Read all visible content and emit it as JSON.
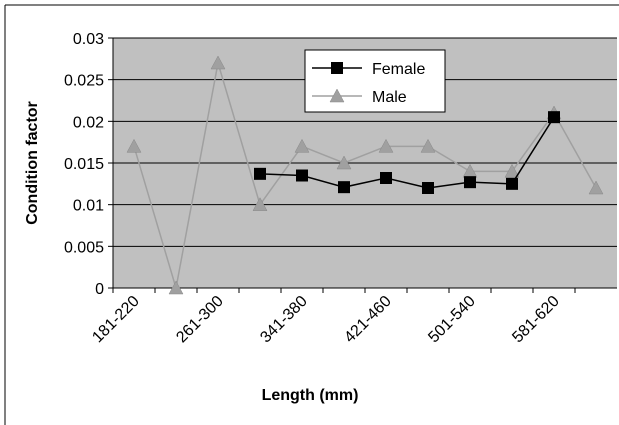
{
  "chart_data": {
    "type": "line",
    "x_label": "Length (mm)",
    "y_label": "Condition factor",
    "categories": [
      "181-220",
      null,
      "261-300",
      null,
      "341-380",
      null,
      "421-460",
      null,
      "501-540",
      null,
      "581-620",
      null
    ],
    "series": [
      {
        "name": "Female",
        "color": "#000000",
        "marker": "square",
        "values": [
          null,
          null,
          null,
          0.0137,
          0.0135,
          0.0121,
          0.0132,
          0.012,
          0.0127,
          0.0125,
          0.0205,
          null
        ]
      },
      {
        "name": "Male",
        "color": "#a0a0a0",
        "marker": "triangle",
        "values": [
          0.017,
          0,
          0.027,
          0.01,
          0.017,
          0.015,
          0.017,
          0.017,
          0.014,
          0.014,
          0.021,
          0.012
        ]
      }
    ],
    "ylim": [
      0,
      0.03
    ],
    "yticks": [
      0,
      0.005,
      0.01,
      0.015,
      0.02,
      0.025,
      0.03
    ],
    "grid": true,
    "legend": "top"
  }
}
